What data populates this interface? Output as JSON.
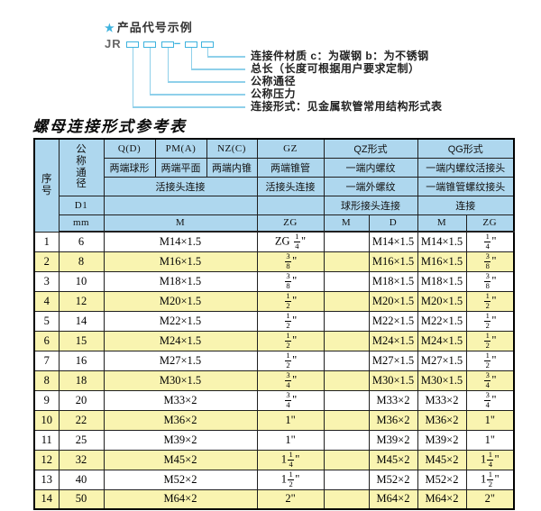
{
  "diagram": {
    "star_icon": "★",
    "heading": "产品代号示例",
    "code_prefix": "JR",
    "separator": "–",
    "labels": [
      "连接件材质  c：为碳钢  b：为不锈钢",
      "总长（长度可根据用户要求定制）",
      "公称通径",
      "公称压力",
      "连接形式：见金属软管常用结构形式表"
    ],
    "accent_color": "#3fb3de"
  },
  "table": {
    "title": "螺母连接形式参考表",
    "colors": {
      "header_bg": "#aed7ee",
      "alt_row_bg": "#f9f4b0",
      "border": "#1f1f1f"
    },
    "header": {
      "serial": "序号",
      "nominal_diameter": "公称通径",
      "d1": "D1",
      "mm": "mm",
      "groups": {
        "q": "Q(D)",
        "pm": "PM(A)",
        "nz": "NZ(C)",
        "gz": "GZ",
        "qz": "QZ形式",
        "qg": "QG形式"
      },
      "end_types": {
        "q": "两端球形",
        "pm": "两端平面",
        "nz": "两端内锥",
        "gz": "两端锥管",
        "qz": "一端内螺纹",
        "qg": "一端内螺纹活接头"
      },
      "conn_types": {
        "qpmnz": "活接头连接",
        "gz": "活接头连接",
        "qz": "一端外螺纹",
        "qg": "一端锥管螺纹接头"
      },
      "conn_types2": {
        "qz": "球形接头连接",
        "qg": "连接"
      },
      "units": {
        "m_wide": "M",
        "zg": "ZG",
        "qz_m": "M",
        "qz_d": "D",
        "qg_m": "M",
        "qg_zg": "ZG"
      }
    },
    "rows": [
      {
        "no": "1",
        "mm": "6",
        "m": "M14×1.5",
        "gz": "ZG {1/4}\"",
        "qz_m": "",
        "qz_d": "M14×1.5",
        "qg_m": "M14×1.5",
        "qg_zg": "{1/4}\""
      },
      {
        "no": "2",
        "mm": "8",
        "m": "M16×1.5",
        "gz": "{3/8}\"",
        "qz_m": "",
        "qz_d": "M16×1.5",
        "qg_m": "M16×1.5",
        "qg_zg": "{3/8}\""
      },
      {
        "no": "3",
        "mm": "10",
        "m": "M18×1.5",
        "gz": "{3/8}\"",
        "qz_m": "",
        "qz_d": "M18×1.5",
        "qg_m": "M18×1.5",
        "qg_zg": "{3/8}\""
      },
      {
        "no": "4",
        "mm": "12",
        "m": "M20×1.5",
        "gz": "{1/2}\"",
        "qz_m": "",
        "qz_d": "M20×1.5",
        "qg_m": "M20×1.5",
        "qg_zg": "{1/2}\""
      },
      {
        "no": "5",
        "mm": "14",
        "m": "M22×1.5",
        "gz": "{1/2}\"",
        "qz_m": "",
        "qz_d": "M22×1.5",
        "qg_m": "M22×1.5",
        "qg_zg": "{1/2}\""
      },
      {
        "no": "6",
        "mm": "15",
        "m": "M24×1.5",
        "gz": "{1/2}\"",
        "qz_m": "",
        "qz_d": "M24×1.5",
        "qg_m": "M24×1.5",
        "qg_zg": "{1/2}\""
      },
      {
        "no": "7",
        "mm": "16",
        "m": "M27×1.5",
        "gz": "{1/2}\"",
        "qz_m": "",
        "qz_d": "M27×1.5",
        "qg_m": "M27×1.5",
        "qg_zg": "{1/2}\""
      },
      {
        "no": "8",
        "mm": "18",
        "m": "M30×1.5",
        "gz": "{3/4}\"",
        "qz_m": "",
        "qz_d": "M30×1.5",
        "qg_m": "M30×1.5",
        "qg_zg": "{3/4}\""
      },
      {
        "no": "9",
        "mm": "20",
        "m": "M33×2",
        "gz": "{3/4}\"",
        "qz_m": "",
        "qz_d": "M33×2",
        "qg_m": "M33×2",
        "qg_zg": "{3/4}\""
      },
      {
        "no": "10",
        "mm": "22",
        "m": "M36×2",
        "gz": "1\"",
        "qz_m": "",
        "qz_d": "M36×2",
        "qg_m": "M36×2",
        "qg_zg": "1\""
      },
      {
        "no": "11",
        "mm": "25",
        "m": "M39×2",
        "gz": "1\"",
        "qz_m": "",
        "qz_d": "M39×2",
        "qg_m": "M39×2",
        "qg_zg": "1\""
      },
      {
        "no": "12",
        "mm": "32",
        "m": "M45×2",
        "gz": "1{1/4}\"",
        "qz_m": "",
        "qz_d": "M45×2",
        "qg_m": "M45×2",
        "qg_zg": "1{1/4}\""
      },
      {
        "no": "13",
        "mm": "40",
        "m": "M52×2",
        "gz": "1{1/2}\"",
        "qz_m": "",
        "qz_d": "M52×2",
        "qg_m": "M52×2",
        "qg_zg": "1{1/2}\""
      },
      {
        "no": "14",
        "mm": "50",
        "m": "M64×2",
        "gz": "2\"",
        "qz_m": "",
        "qz_d": "M64×2",
        "qg_m": "M64×2",
        "qg_zg": "2\""
      }
    ]
  }
}
